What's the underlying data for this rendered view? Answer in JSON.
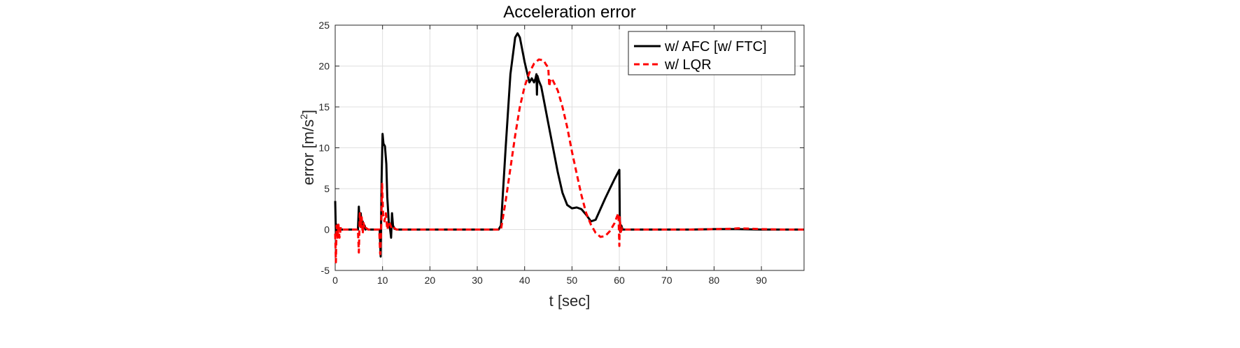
{
  "chart_data": {
    "type": "line",
    "title": "Acceleration error",
    "xlabel": "t [sec]",
    "ylabel_main": "error [m/s",
    "ylabel_sup": "2",
    "ylabel_end": "]",
    "xlim": [
      0,
      99
    ],
    "ylim": [
      -5,
      25
    ],
    "xticks": [
      0,
      10,
      20,
      30,
      40,
      50,
      60,
      70,
      80,
      90
    ],
    "yticks": [
      -5,
      0,
      5,
      10,
      15,
      20,
      25
    ],
    "grid": true,
    "legend_position": "top-right",
    "series": [
      {
        "name": "w/ AFC [w/ FTC]",
        "color": "#000000",
        "style": "solid",
        "x": [
          0,
          0.15,
          0.3,
          0.45,
          0.6,
          0.8,
          1.0,
          1.2,
          1.5,
          2,
          3,
          4,
          4.8,
          5.0,
          5.2,
          5.4,
          5.6,
          5.8,
          6.0,
          6.2,
          6.4,
          6.6,
          7,
          8,
          9,
          9.4,
          9.6,
          9.8,
          10.0,
          10.2,
          10.5,
          10.8,
          11.0,
          11.3,
          11.6,
          11.8,
          12.0,
          12.2,
          12.5,
          13,
          15,
          20,
          25,
          30,
          34.5,
          35,
          36,
          37,
          38,
          38.5,
          39,
          39.5,
          40,
          41,
          41.5,
          42,
          42.3,
          42.5,
          42.6,
          42.7,
          43,
          43.5,
          44,
          45,
          46,
          47,
          48,
          49,
          50,
          51,
          52,
          53,
          54,
          55,
          56,
          57,
          58,
          59,
          60,
          60.1,
          60.2,
          60.4,
          60.7,
          61,
          62,
          65,
          70,
          75,
          80,
          85,
          90,
          95,
          99
        ],
        "y": [
          3.5,
          -0.5,
          0.6,
          -0.3,
          0.1,
          0.0,
          0.0,
          0.0,
          0.0,
          0.0,
          0.0,
          0.0,
          0.0,
          2.8,
          0.5,
          2.0,
          0.3,
          1.0,
          0.2,
          0.5,
          0.0,
          0.1,
          0.0,
          0.0,
          0.0,
          0.0,
          -3.3,
          6.0,
          11.7,
          10.5,
          10.2,
          8.0,
          4.0,
          1.0,
          0.0,
          -1.0,
          2.0,
          0.5,
          0.1,
          0.0,
          0.0,
          0.0,
          0.0,
          0.0,
          0.0,
          0.5,
          10.0,
          19.0,
          23.5,
          24.0,
          23.5,
          22.0,
          20.5,
          18.0,
          18.5,
          18.0,
          18.5,
          19.0,
          16.5,
          18.8,
          18.2,
          17.5,
          16.0,
          13.0,
          10.0,
          7.0,
          4.5,
          3.0,
          2.6,
          2.7,
          2.5,
          1.8,
          1.0,
          1.2,
          2.5,
          3.8,
          5.0,
          6.2,
          7.3,
          1.5,
          -0.3,
          0.5,
          0.0,
          0.0,
          0.0,
          0.0,
          0.0,
          0.0,
          0.05,
          0.05,
          0.0,
          0.0,
          0.0
        ]
      },
      {
        "name": "w/ LQR",
        "color": "#ff0000",
        "style": "dashed",
        "x": [
          0,
          0.15,
          0.3,
          0.5,
          0.7,
          0.9,
          1.2,
          1.5,
          2,
          3,
          4,
          4.8,
          5.0,
          5.2,
          5.4,
          5.6,
          5.8,
          6.0,
          6.2,
          6.5,
          7,
          8,
          9,
          9.3,
          9.5,
          9.7,
          9.9,
          10.1,
          10.4,
          10.7,
          11.0,
          11.4,
          11.8,
          12.2,
          12.6,
          13,
          15,
          20,
          25,
          30,
          34.5,
          35,
          36,
          37,
          38,
          39,
          40,
          41,
          42,
          43,
          44,
          44.5,
          45,
          45.2,
          45.5,
          46,
          47,
          48,
          49,
          50,
          51,
          52,
          53,
          54,
          55,
          56,
          57,
          58,
          59,
          59.5,
          59.8,
          60.0,
          60.1,
          60.3,
          60.6,
          61,
          62,
          65,
          70,
          75,
          80,
          84,
          85,
          88,
          90,
          95,
          99
        ],
        "y": [
          -0.5,
          -4.0,
          0.5,
          -1.0,
          0.6,
          -1.0,
          0.3,
          0.0,
          0.0,
          0.0,
          0.0,
          0.0,
          -2.8,
          2.0,
          0.3,
          1.5,
          -0.5,
          0.8,
          0.0,
          0.2,
          0.0,
          0.0,
          0.0,
          0.0,
          -3.0,
          0.0,
          5.6,
          2.0,
          1.0,
          2.0,
          0.0,
          1.0,
          0.3,
          0.5,
          0.1,
          0.0,
          0.0,
          0.0,
          0.0,
          0.0,
          0.0,
          0.0,
          3.5,
          7.5,
          11.5,
          15.0,
          17.5,
          19.2,
          20.3,
          20.8,
          20.7,
          20.2,
          19.8,
          17.5,
          18.5,
          18.2,
          17.0,
          15.0,
          12.5,
          9.5,
          6.8,
          4.2,
          2.0,
          0.6,
          -0.4,
          -0.9,
          -0.8,
          -0.2,
          0.8,
          1.6,
          2.0,
          -2.0,
          1.5,
          -0.3,
          0.2,
          0.0,
          0.0,
          0.0,
          0.0,
          0.0,
          0.05,
          0.1,
          0.15,
          0.1,
          0.05,
          0.0,
          0.0
        ]
      }
    ]
  }
}
